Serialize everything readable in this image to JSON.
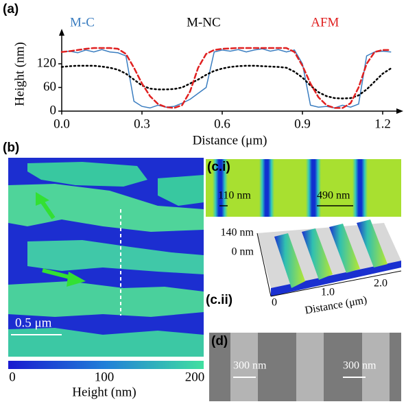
{
  "chart_data": {
    "type": "line",
    "xlabel": "Distance (μm)",
    "ylabel": "Height (nm)",
    "x": [
      0,
      0.03,
      0.06,
      0.09,
      0.12,
      0.15,
      0.18,
      0.21,
      0.24,
      0.27,
      0.3,
      0.33,
      0.36,
      0.39,
      0.42,
      0.45,
      0.48,
      0.51,
      0.54,
      0.57,
      0.6,
      0.63,
      0.66,
      0.69,
      0.72,
      0.75,
      0.78,
      0.81,
      0.84,
      0.87,
      0.9,
      0.93,
      0.96,
      0.99,
      1.02,
      1.05,
      1.08,
      1.11,
      1.14,
      1.17,
      1.2,
      1.23
    ],
    "series": [
      {
        "name": "M-C",
        "color": "#3a7dc0",
        "style": "solid",
        "values": [
          150,
          152,
          148,
          155,
          150,
          156,
          150,
          148,
          140,
          25,
          12,
          8,
          15,
          10,
          12,
          20,
          30,
          45,
          60,
          150,
          155,
          152,
          156,
          150,
          155,
          158,
          152,
          156,
          150,
          155,
          120,
          15,
          10,
          12,
          8,
          15,
          10,
          18,
          140,
          150,
          152,
          150
        ]
      },
      {
        "name": "M-NC",
        "color": "#000000",
        "style": "dotted",
        "values": [
          112,
          114,
          115,
          115,
          115,
          113,
          110,
          105,
          95,
          80,
          65,
          57,
          55,
          55,
          56,
          60,
          70,
          80,
          92,
          102,
          108,
          112,
          114,
          115,
          115,
          114,
          113,
          112,
          110,
          100,
          85,
          65,
          48,
          38,
          33,
          32,
          33,
          40,
          55,
          75,
          95,
          108
        ]
      },
      {
        "name": "AFM",
        "color": "#e02020",
        "style": "dashed",
        "values": [
          150,
          152,
          155,
          158,
          160,
          160,
          160,
          158,
          145,
          110,
          70,
          38,
          18,
          10,
          8,
          15,
          50,
          110,
          145,
          155,
          158,
          159,
          160,
          160,
          160,
          160,
          160,
          160,
          160,
          150,
          115,
          70,
          35,
          15,
          8,
          8,
          20,
          60,
          120,
          150,
          155,
          155
        ]
      }
    ],
    "xlim": [
      0,
      1.26
    ],
    "ylim": [
      0,
      190
    ],
    "xticks": [
      {
        "value": 0,
        "label": "0.0"
      },
      0.3,
      0.6,
      0.9,
      1.2
    ],
    "yticks": [
      0,
      60,
      120
    ],
    "legend": "top",
    "grid": false
  },
  "panels": {
    "a": "(a)",
    "b": "(b)",
    "ci": "(c.i)",
    "cii": "(c.ii)",
    "d": "(d)"
  },
  "panel_b": {
    "scale_bar": "0.5 μm",
    "colorbar_ticks": [
      "0",
      "100",
      "200"
    ],
    "colorbar_label": "Height (nm)"
  },
  "panel_ci": {
    "width_1": "110 nm",
    "width_2": "490 nm"
  },
  "panel_cii": {
    "z_top": "140 nm",
    "z_bottom": "0 nm",
    "x_ticks": [
      "0",
      "1.0",
      "2.0"
    ],
    "x_label": "Distance (μm)"
  },
  "panel_d": {
    "width_1": "300 nm",
    "width_2": "300 nm"
  }
}
